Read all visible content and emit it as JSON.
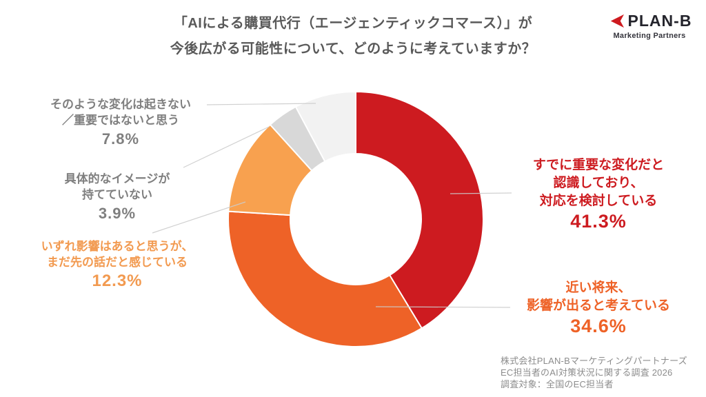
{
  "header": {
    "title_line1": "「AIによる購買代行（エージェンティックコマース）」が",
    "title_line2": "今後広がる可能性について、どのように考えていますか？"
  },
  "logo": {
    "name": "PLAN-B",
    "subtitle": "Marketing Partners",
    "brand_red": "#ce1a1f",
    "brand_dark": "#24242c"
  },
  "chart_data": {
    "type": "pie",
    "donut": true,
    "title": "「AIによる購買代行（エージェンティックコマース）」が今後広がる可能性について、どのように考えていますか？",
    "start_angle_deg": 0,
    "direction": "clockwise",
    "center": [
      516,
      318
    ],
    "outer_radius": 185,
    "inner_radius": 95,
    "segment_gap_color": "#ffffff",
    "segments": [
      {
        "label": "すでに重要な変化だと認識しており、対応を検討している",
        "value": 41.3,
        "color": "#cd1b20"
      },
      {
        "label": "近い将来、影響が出ると考えている",
        "value": 34.6,
        "color": "#ee6227"
      },
      {
        "label": "いずれ影響はあると思うが、まだ先の話だと感じている",
        "value": 12.3,
        "color": "#f8a14f"
      },
      {
        "label": "具体的なイメージが持てていない",
        "value": 3.9,
        "color": "#d8d8d8"
      },
      {
        "label": "そのような変化は起きない／重要ではないと思う",
        "value": 7.8,
        "color": "#f2f2f2"
      }
    ]
  },
  "callouts": {
    "already": {
      "lines": [
        "すでに重要な変化だと",
        "認識しており、",
        "対応を検討している"
      ],
      "pct": "41.3%",
      "color": "#cd1b20"
    },
    "near_future": {
      "lines": [
        "近い将来、",
        "影響が出ると考えている"
      ],
      "pct": "34.6%",
      "color": "#ee6227"
    },
    "someday": {
      "lines": [
        "いずれ影響はあると思うが、",
        "まだ先の話だと感じている"
      ],
      "pct": "12.3%",
      "color": "#f29a50"
    },
    "no_image": {
      "lines": [
        "具体的なイメージが",
        "持てていない"
      ],
      "pct": "3.9%",
      "color": "#7f7f7f"
    },
    "no_change": {
      "lines": [
        "そのような変化は起きない",
        "／重要ではないと思う"
      ],
      "pct": "7.8%",
      "color": "#7f7f7f"
    }
  },
  "footer": {
    "lines": [
      "株式会社PLAN-Bマーケティングパートナーズ",
      "EC担当者のAI対策状況に関する調査 2026",
      "調査対象：全国のEC担当者"
    ]
  }
}
